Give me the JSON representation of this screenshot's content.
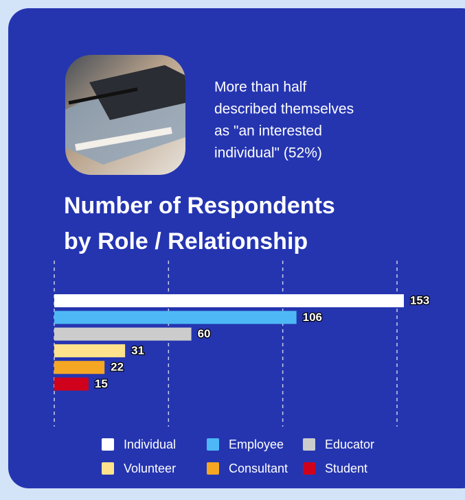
{
  "chart_data": {
    "type": "bar",
    "annotation": [
      "More than half",
      "described themselves",
      "as \"an interested",
      "individual\" (52%)"
    ],
    "title": [
      "Number of Respondents",
      "by Role / Relationship"
    ],
    "categories": [
      "Individual",
      "Employee",
      "Educator",
      "Volunteer",
      "Consultant",
      "Student"
    ],
    "values": [
      153,
      106,
      60,
      31,
      22,
      15
    ],
    "colors": [
      "#ffffff",
      "#4db8f5",
      "#cccccc",
      "#ffe38c",
      "#f5a623",
      "#d0021b"
    ],
    "xlim": [
      0,
      150
    ],
    "xticks": [
      0,
      50,
      100,
      150
    ],
    "grid": true,
    "orientation": "horizontal"
  }
}
